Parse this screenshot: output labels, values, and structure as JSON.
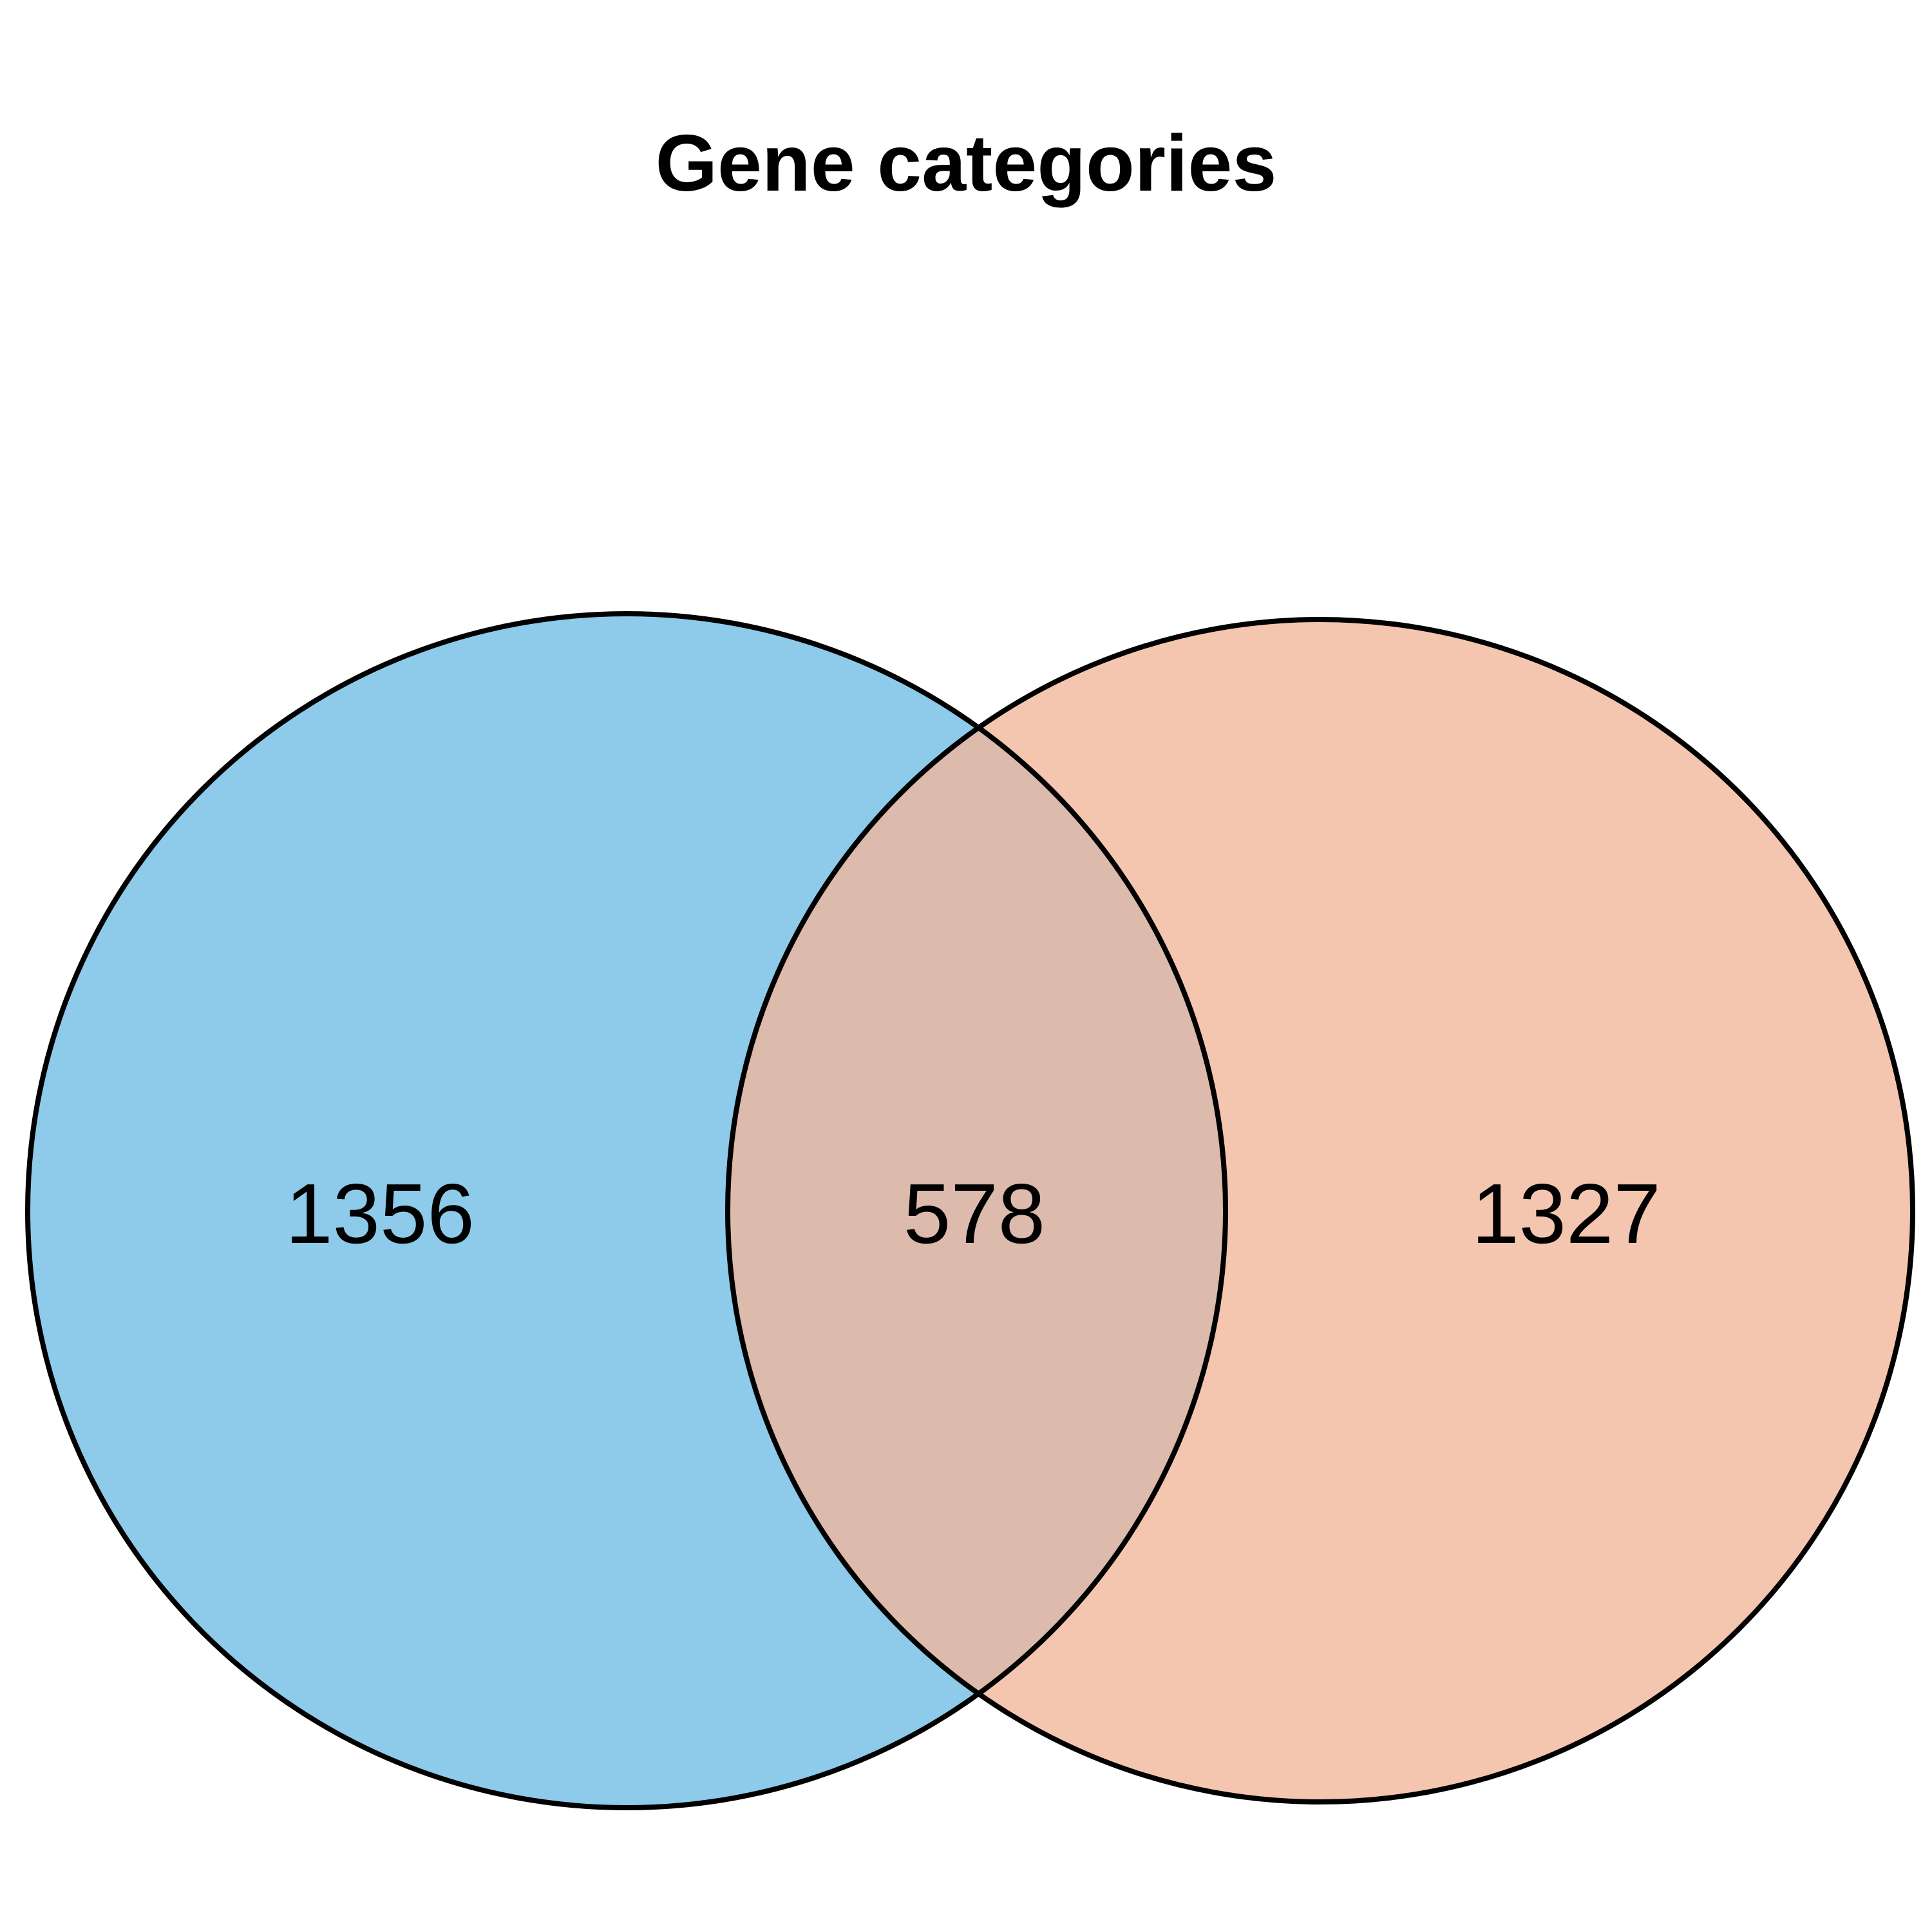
{
  "chart_data": {
    "type": "venn",
    "title": "Gene categories",
    "sets": [
      {
        "name": "",
        "color": "#8ECAEA"
      },
      {
        "name": "",
        "color": "#F4C6B0"
      }
    ],
    "overlap_color": "#DCBAAC",
    "counts": {
      "left_only": 1356,
      "intersection": 578,
      "right_only": 1327
    }
  }
}
